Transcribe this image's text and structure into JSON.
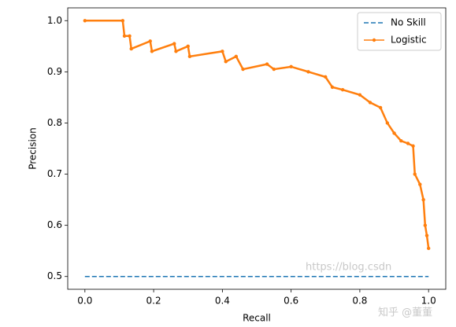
{
  "chart_data": {
    "type": "line",
    "xlabel": "Recall",
    "ylabel": "Precision",
    "xlim": [
      -0.05,
      1.05
    ],
    "ylim": [
      0.475,
      1.025
    ],
    "xticks": [
      {
        "value": 0,
        "label": "0.0"
      },
      0.2,
      0.4,
      0.6,
      0.8,
      {
        "value": 1,
        "label": "1.0"
      }
    ],
    "yticks": [
      0.5,
      0.6,
      0.7,
      0.8,
      0.9,
      {
        "value": 1,
        "label": "1.0"
      }
    ],
    "legend": "upper right",
    "series": [
      {
        "name": "No Skill",
        "color": "#1f77b4",
        "linestyle": "dashed",
        "marker": false,
        "x": [
          0,
          1
        ],
        "values": [
          0.5,
          0.5
        ]
      },
      {
        "name": "Logistic",
        "color": "#ff7f0e",
        "linestyle": "solid",
        "marker": true,
        "x": [
          0,
          0.11,
          0.115,
          0.13,
          0.135,
          0.19,
          0.195,
          0.26,
          0.265,
          0.3,
          0.305,
          0.4,
          0.41,
          0.44,
          0.46,
          0.53,
          0.55,
          0.6,
          0.65,
          0.7,
          0.72,
          0.75,
          0.8,
          0.83,
          0.86,
          0.88,
          0.9,
          0.92,
          0.94,
          0.955,
          0.96,
          0.975,
          0.985,
          0.99,
          0.995,
          1
        ],
        "values": [
          1,
          1,
          0.97,
          0.97,
          0.945,
          0.96,
          0.94,
          0.955,
          0.94,
          0.95,
          0.93,
          0.94,
          0.92,
          0.93,
          0.905,
          0.915,
          0.905,
          0.91,
          0.9,
          0.89,
          0.87,
          0.865,
          0.855,
          0.84,
          0.83,
          0.8,
          0.78,
          0.765,
          0.76,
          0.755,
          0.7,
          0.68,
          0.65,
          0.6,
          0.58,
          0.555
        ]
      }
    ],
    "watermark": [
      "https://blog.csdn",
      "知乎 @董董"
    ]
  }
}
